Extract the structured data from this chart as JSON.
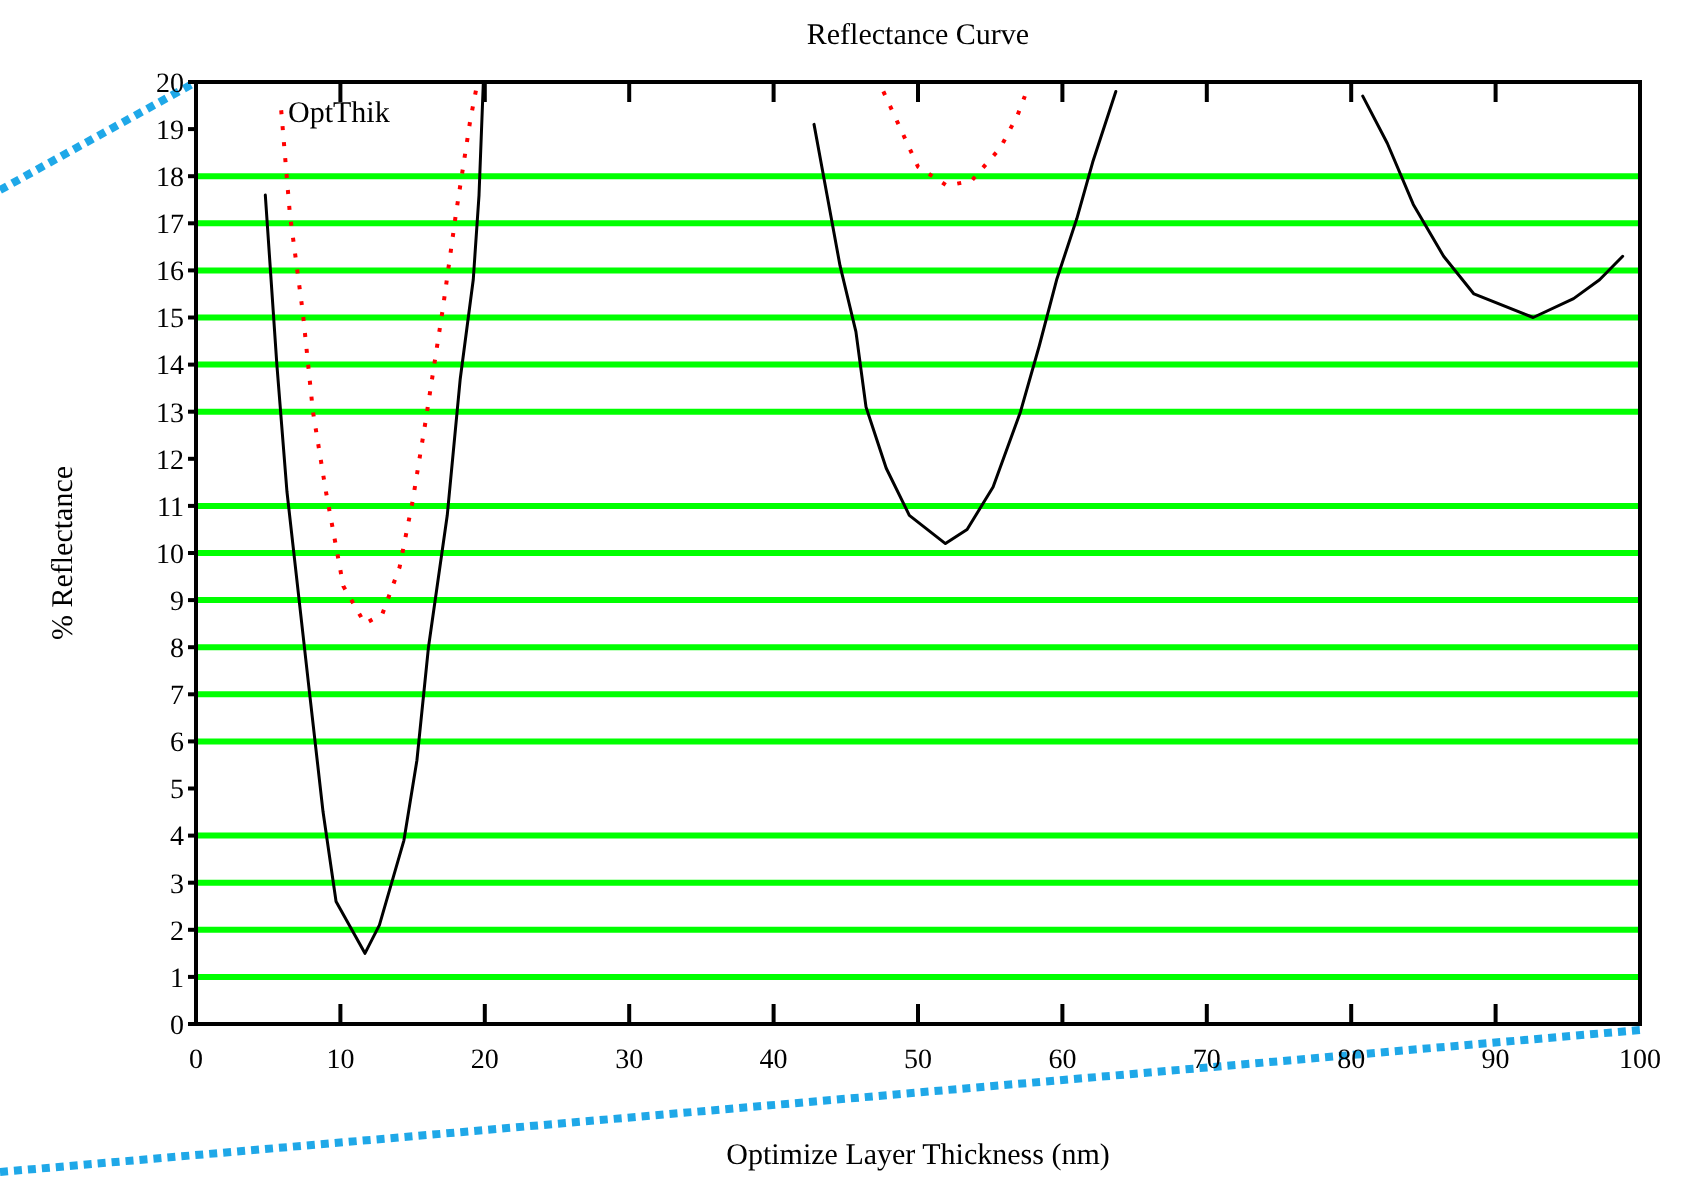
{
  "chart_data": {
    "type": "line",
    "title": "Reflectance Curve",
    "xlabel": "Optimize Layer Thickness (nm)",
    "ylabel": "% Reflectance",
    "annotations": [
      "OptThik"
    ],
    "xlim": [
      0,
      100
    ],
    "xticks": [
      0,
      10,
      20,
      30,
      40,
      50,
      60,
      70,
      80,
      90,
      100
    ],
    "ylim": [
      0,
      20
    ],
    "yticks": [
      0,
      1,
      2,
      3,
      4,
      5,
      6,
      7,
      8,
      9,
      10,
      11,
      12,
      13,
      14,
      15,
      16,
      17,
      18,
      19,
      20
    ],
    "grid": false,
    "series": [
      {
        "color": "#000000",
        "line_style": "solid",
        "x": [
          4.8,
          5.6,
          6.3,
          7.8,
          8.8,
          9.7,
          11.7,
          12.7,
          14.4,
          15.3,
          16.1,
          17.4,
          18.3,
          19.2,
          19.6,
          19.9,
          30,
          42.8,
          43.7,
          44.6,
          45.7,
          46.4,
          47.8,
          49.4,
          51.9,
          53.4,
          55.2,
          57.1,
          58.4,
          59.6,
          61.0,
          62.1,
          63.7,
          72,
          80.8,
          82.5,
          84.3,
          86.4,
          88.5,
          92.6,
          95.4,
          97.2,
          98.8
        ],
        "values": [
          17.6,
          14.0,
          11.3,
          7.2,
          4.5,
          2.6,
          1.5,
          2.1,
          3.9,
          5.6,
          8.0,
          10.8,
          13.7,
          15.8,
          17.6,
          20,
          null,
          19.1,
          17.6,
          16.1,
          14.7,
          13.1,
          11.8,
          10.8,
          10.2,
          10.5,
          11.4,
          13.0,
          14.4,
          15.8,
          17.1,
          18.3,
          19.8,
          null,
          19.7,
          18.7,
          17.4,
          16.3,
          15.5,
          15.0,
          15.4,
          15.8,
          16.3
        ]
      },
      {
        "color": "#ff0000",
        "line_style": "dotted",
        "x": [
          5.9,
          6.5,
          7.4,
          8.1,
          9.0,
          10.2,
          11.7,
          12.9,
          14.1,
          15.0,
          15.9,
          17.1,
          18.0,
          19.0,
          19.5,
          30,
          47.6,
          48.8,
          50.0,
          52.0,
          53.7,
          55.7,
          56.9,
          57.4
        ],
        "values": [
          19.4,
          17.2,
          15.1,
          13.0,
          11.3,
          9.3,
          8.5,
          8.7,
          9.7,
          11.1,
          12.8,
          15.2,
          17.2,
          19.2,
          20,
          null,
          19.8,
          19.0,
          18.2,
          17.8,
          17.9,
          18.6,
          19.3,
          19.7
        ]
      }
    ],
    "ref_lines": [
      {
        "axis": "y",
        "value": 1,
        "color": "#00ff00"
      },
      {
        "axis": "y",
        "value": 2,
        "color": "#00ff00"
      },
      {
        "axis": "y",
        "value": 3,
        "color": "#00ff00"
      },
      {
        "axis": "y",
        "value": 4,
        "color": "#00ff00"
      },
      {
        "axis": "y",
        "value": 6,
        "color": "#00ff00"
      },
      {
        "axis": "y",
        "value": 7,
        "color": "#00ff00"
      },
      {
        "axis": "y",
        "value": 8,
        "color": "#00ff00"
      },
      {
        "axis": "y",
        "value": 9,
        "color": "#00ff00"
      },
      {
        "axis": "y",
        "value": 10,
        "color": "#00ff00"
      },
      {
        "axis": "y",
        "value": 11,
        "color": "#00ff00"
      },
      {
        "axis": "y",
        "value": 13,
        "color": "#00ff00"
      },
      {
        "axis": "y",
        "value": 14,
        "color": "#00ff00"
      },
      {
        "axis": "y",
        "value": 15,
        "color": "#00ff00"
      },
      {
        "axis": "y",
        "value": 16,
        "color": "#00ff00"
      },
      {
        "axis": "y",
        "value": 17,
        "color": "#00ff00"
      },
      {
        "axis": "y",
        "value": 18,
        "color": "#00ff00"
      }
    ]
  }
}
